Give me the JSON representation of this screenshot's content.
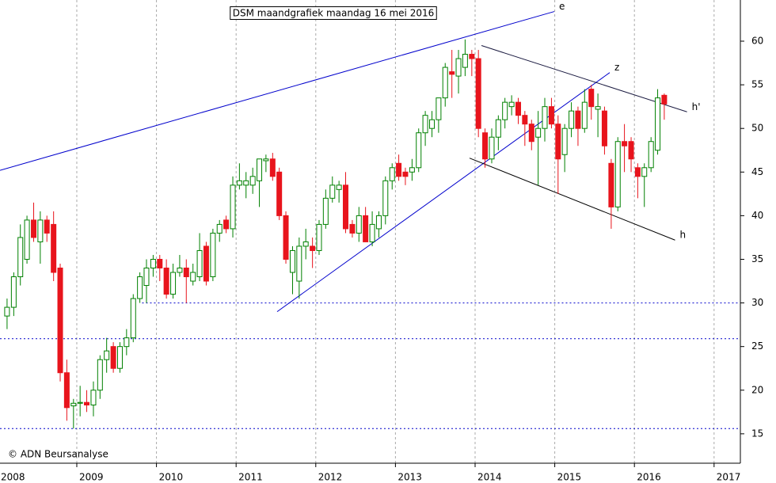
{
  "chart_data": {
    "type": "candlestick",
    "title": "DSM maandgrafiek maandag 16 mei 2016",
    "copyright": "© ADN Beursanalyse",
    "up_color": "#008000",
    "down_color": "#e8141c",
    "xlim": [
      2008.036,
      2017.33
    ],
    "xticks": [
      2008,
      2009,
      2010,
      2011,
      2012,
      2013,
      2014,
      2015,
      2016,
      2017
    ],
    "ylim": [
      11.63,
      64.72
    ],
    "yticks": [
      15,
      20,
      25,
      30,
      35,
      40,
      45,
      50,
      55,
      60
    ],
    "x": [
      2008.083,
      2008.167,
      2008.25,
      2008.333,
      2008.417,
      2008.5,
      2008.583,
      2008.667,
      2008.75,
      2008.833,
      2008.917,
      2009,
      2009.083,
      2009.167,
      2009.25,
      2009.333,
      2009.417,
      2009.5,
      2009.583,
      2009.667,
      2009.75,
      2009.833,
      2009.917,
      2010,
      2010.083,
      2010.167,
      2010.25,
      2010.333,
      2010.417,
      2010.5,
      2010.583,
      2010.667,
      2010.75,
      2010.833,
      2010.917,
      2011,
      2011.083,
      2011.167,
      2011.25,
      2011.333,
      2011.417,
      2011.5,
      2011.583,
      2011.667,
      2011.75,
      2011.833,
      2011.917,
      2012,
      2012.083,
      2012.167,
      2012.25,
      2012.333,
      2012.417,
      2012.5,
      2012.583,
      2012.667,
      2012.75,
      2012.833,
      2012.917,
      2013,
      2013.083,
      2013.167,
      2013.25,
      2013.333,
      2013.417,
      2013.5,
      2013.583,
      2013.667,
      2013.75,
      2013.833,
      2013.917,
      2014,
      2014.083,
      2014.167,
      2014.25,
      2014.333,
      2014.417,
      2014.5,
      2014.583,
      2014.667,
      2014.75,
      2014.833,
      2014.917,
      2015,
      2015.083,
      2015.167,
      2015.25,
      2015.333,
      2015.417,
      2015.5,
      2015.583,
      2015.667,
      2015.75,
      2015.833,
      2015.917,
      2016,
      2016.083,
      2016.167,
      2016.25,
      2016.333
    ],
    "open": [
      28.5,
      29.5,
      33,
      35,
      39.5,
      37,
      39.5,
      39,
      34,
      22,
      18.2,
      18.5,
      18.6,
      18.3,
      20,
      23.5,
      25,
      22.5,
      25,
      26,
      30.5,
      32,
      34,
      35,
      34,
      31,
      33.5,
      34,
      32.5,
      33,
      36.5,
      33,
      38,
      39.5,
      38.5,
      43.5,
      43.5,
      43.5,
      44,
      46.3,
      46.5,
      45,
      40,
      33.5,
      32.5,
      36.5,
      36.5,
      36,
      39,
      42,
      43,
      43.5,
      39,
      38,
      40,
      37,
      38.5,
      40,
      44,
      46,
      45,
      45,
      45.5,
      49.5,
      50,
      51,
      53.5,
      56.5,
      56,
      57,
      58.5,
      58,
      49.5,
      46.5,
      49,
      51,
      52.5,
      53,
      51.5,
      50.5,
      49,
      50,
      52.5,
      50.5,
      47,
      50,
      52,
      50,
      54.5,
      52.2,
      52,
      46,
      41,
      48.5,
      48.5,
      45.5,
      44.5,
      45.5,
      47.5,
      53.8
    ],
    "high": [
      30.5,
      33.5,
      39,
      40,
      41.5,
      40.5,
      40,
      40.5,
      34.5,
      23.5,
      19,
      20.5,
      20,
      21,
      24,
      26,
      25.5,
      25.5,
      27,
      31,
      33.5,
      35,
      35.5,
      35.5,
      35,
      34.5,
      35.5,
      35,
      34.5,
      38,
      37,
      38.5,
      39.5,
      40,
      44.5,
      46,
      45,
      45.5,
      46.5,
      47,
      47.2,
      45.5,
      40.5,
      36.5,
      37.5,
      38.5,
      37.5,
      39.5,
      43,
      44.5,
      44,
      45,
      39.5,
      41,
      41,
      40.5,
      40.5,
      44.5,
      46,
      47,
      45.5,
      46.5,
      50,
      52,
      52,
      53.5,
      57.5,
      59,
      59,
      60.2,
      59,
      59,
      50,
      50,
      51.5,
      53.5,
      53.8,
      53.5,
      52,
      51,
      52,
      53.5,
      53.5,
      51.5,
      50.5,
      53,
      52.5,
      54.5,
      55,
      54,
      52.5,
      46.5,
      49,
      50.5,
      49,
      46,
      46,
      49,
      54.5,
      54
    ],
    "low": [
      27,
      28.5,
      32,
      34.5,
      37,
      34.5,
      37,
      32.5,
      21,
      16.5,
      15.6,
      17,
      17.5,
      17,
      19,
      22,
      22,
      22,
      24,
      25.5,
      30,
      30,
      33,
      32.5,
      30.5,
      30.5,
      33,
      30,
      32,
      32.5,
      32,
      32.5,
      37,
      38,
      37.5,
      43,
      42,
      42.5,
      41,
      45,
      44,
      39.5,
      34.5,
      31,
      30.5,
      35,
      34,
      35.5,
      38.5,
      41.5,
      41.5,
      38,
      37.5,
      37,
      37,
      36.5,
      37.5,
      39,
      43,
      44,
      43.5,
      44,
      45,
      48,
      49,
      49.5,
      52.5,
      53.5,
      54,
      56,
      56,
      49,
      45.5,
      46,
      47.5,
      50,
      51.5,
      50.5,
      48,
      47.5,
      43.5,
      48.5,
      50,
      42.5,
      45,
      49,
      48,
      49.5,
      51,
      49,
      47,
      38.5,
      40.5,
      45,
      45,
      42,
      41,
      45,
      47,
      51
    ],
    "close": [
      29.5,
      33,
      37.5,
      39.5,
      37.5,
      39.5,
      38,
      33.5,
      22,
      18,
      18.5,
      18.6,
      18.3,
      20,
      23.5,
      24.5,
      22.5,
      25,
      26,
      30.5,
      33,
      34,
      35,
      34,
      31,
      33.5,
      34,
      33,
      33.5,
      36,
      32.5,
      38,
      39,
      38.5,
      43.5,
      44,
      44,
      44.5,
      46.5,
      46.5,
      44.5,
      40,
      35,
      36,
      36.5,
      37,
      36,
      39,
      42,
      43.5,
      43.5,
      38.5,
      38,
      40,
      37,
      39,
      40,
      44,
      45.5,
      44.5,
      44.5,
      45.5,
      49.5,
      51.5,
      51,
      53.5,
      57,
      56.2,
      58,
      58.5,
      58,
      50,
      46.5,
      49,
      51,
      53,
      53,
      51.5,
      50.5,
      48.5,
      50,
      52.5,
      50.5,
      46.5,
      50,
      52,
      50,
      53,
      52.5,
      52.5,
      48,
      41,
      48.5,
      48,
      46.5,
      44.5,
      45.5,
      48.5,
      53.5,
      52.8
    ],
    "hlines": [
      {
        "value": 30,
        "start": 2009.82
      },
      {
        "value": 25.9,
        "start": 2008.036
      },
      {
        "value": 15.6,
        "start": 2008.036
      }
    ],
    "hline_color": "#0000cc",
    "trendlines": [
      {
        "label": "e",
        "color": "#0000cc",
        "points": [
          [
            2008.036,
            45.2
          ],
          [
            2014.994,
            63.4
          ]
        ]
      },
      {
        "label": "z",
        "color": "#0000cc",
        "points": [
          [
            2011.515,
            29.0
          ],
          [
            2015.69,
            56.4
          ]
        ]
      },
      {
        "label": "h",
        "color": "#000000",
        "points": [
          [
            2013.93,
            46.6
          ],
          [
            2016.51,
            37.2
          ]
        ]
      },
      {
        "label": "h'",
        "color": "#1a1a40",
        "points": [
          [
            2014.08,
            59.5
          ],
          [
            2016.66,
            51.9
          ]
        ]
      }
    ]
  }
}
